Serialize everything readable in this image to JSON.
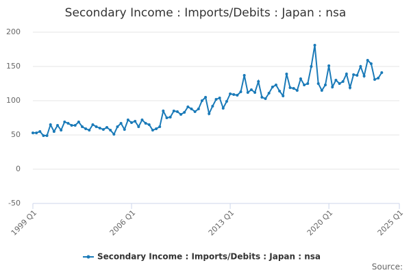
{
  "chart_data": {
    "type": "line",
    "title": "Secondary Income : Imports/Debits : Japan : nsa",
    "x": [
      "1999 Q1",
      "1999 Q2",
      "1999 Q3",
      "1999 Q4",
      "2000 Q1",
      "2000 Q2",
      "2000 Q3",
      "2000 Q4",
      "2001 Q1",
      "2001 Q2",
      "2001 Q3",
      "2001 Q4",
      "2002 Q1",
      "2002 Q2",
      "2002 Q3",
      "2002 Q4",
      "2003 Q1",
      "2003 Q2",
      "2003 Q3",
      "2003 Q4",
      "2004 Q1",
      "2004 Q2",
      "2004 Q3",
      "2004 Q4",
      "2005 Q1",
      "2005 Q2",
      "2005 Q3",
      "2005 Q4",
      "2006 Q1",
      "2006 Q2",
      "2006 Q3",
      "2006 Q4",
      "2007 Q1",
      "2007 Q2",
      "2007 Q3",
      "2007 Q4",
      "2008 Q1",
      "2008 Q2",
      "2008 Q3",
      "2008 Q4",
      "2009 Q1",
      "2009 Q2",
      "2009 Q3",
      "2009 Q4",
      "2010 Q1",
      "2010 Q2",
      "2010 Q3",
      "2010 Q4",
      "2011 Q1",
      "2011 Q2",
      "2011 Q3",
      "2011 Q4",
      "2012 Q1",
      "2012 Q2",
      "2012 Q3",
      "2012 Q4",
      "2013 Q1",
      "2013 Q2",
      "2013 Q3",
      "2013 Q4",
      "2014 Q1",
      "2014 Q2",
      "2014 Q3",
      "2014 Q4",
      "2015 Q1",
      "2015 Q2",
      "2015 Q3",
      "2015 Q4",
      "2016 Q1",
      "2016 Q2",
      "2016 Q3",
      "2016 Q4",
      "2017 Q1",
      "2017 Q2",
      "2017 Q3",
      "2017 Q4",
      "2018 Q1",
      "2018 Q2",
      "2018 Q3",
      "2018 Q4",
      "2019 Q1",
      "2019 Q2",
      "2019 Q3",
      "2019 Q4",
      "2020 Q1",
      "2020 Q2",
      "2020 Q3",
      "2020 Q4",
      "2021 Q1",
      "2021 Q2",
      "2021 Q3",
      "2021 Q4",
      "2022 Q1",
      "2022 Q2",
      "2022 Q3",
      "2022 Q4",
      "2023 Q1",
      "2023 Q2",
      "2023 Q3",
      "2023 Q4"
    ],
    "series": [
      {
        "name": "Secondary Income : Imports/Debits : Japan : nsa",
        "color": "#1a7ab8",
        "values": [
          53,
          53,
          55,
          49,
          49,
          65,
          55,
          64,
          57,
          69,
          67,
          64,
          64,
          69,
          62,
          59,
          57,
          65,
          62,
          60,
          58,
          61,
          57,
          51,
          62,
          67,
          58,
          72,
          68,
          70,
          62,
          72,
          67,
          65,
          57,
          59,
          62,
          85,
          75,
          76,
          85,
          84,
          80,
          83,
          91,
          88,
          84,
          88,
          100,
          105,
          81,
          92,
          102,
          104,
          89,
          99,
          110,
          109,
          108,
          113,
          137,
          112,
          116,
          112,
          128,
          105,
          103,
          111,
          120,
          123,
          114,
          107,
          139,
          119,
          118,
          115,
          132,
          123,
          125,
          150,
          181,
          125,
          115,
          123,
          151,
          120,
          130,
          125,
          128,
          139,
          119,
          138,
          137,
          150,
          136,
          159,
          154,
          131,
          133,
          141
        ]
      }
    ],
    "xlim": [
      "1999 Q1",
      "2025 Q1"
    ],
    "xticks": [
      "1999 Q1",
      "2006 Q1",
      "2013 Q1",
      "2020 Q1",
      "2025 Q1"
    ],
    "ylim": [
      -50,
      200
    ],
    "yticks": [
      -50,
      0,
      50,
      100,
      150,
      200
    ],
    "grid": true,
    "source": "Source:"
  }
}
